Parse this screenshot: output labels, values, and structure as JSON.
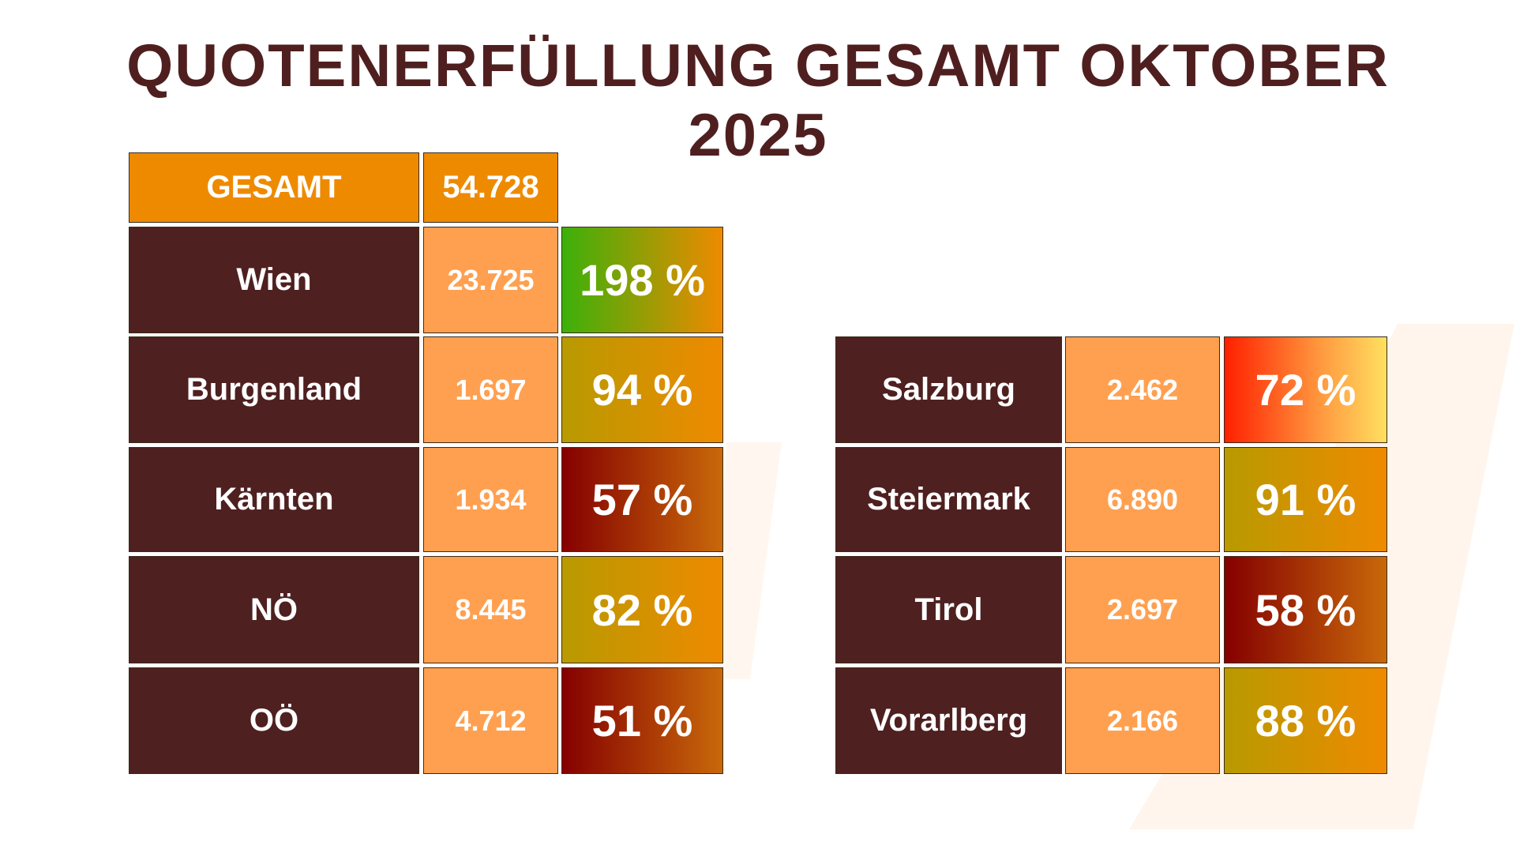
{
  "title": {
    "line1": "QUOTENERFÜLLUNG GESAMT OKTOBER",
    "line2": "2025"
  },
  "total": {
    "label": "GESAMT",
    "value": "54.728"
  },
  "left": [
    {
      "name": "Wien",
      "value": "23.725",
      "percent": "198 %",
      "color": "green"
    },
    {
      "name": "Burgenland",
      "value": "1.697",
      "percent": "94 %",
      "color": "olive"
    },
    {
      "name": "Kärnten",
      "value": "1.934",
      "percent": "57 %",
      "color": "red"
    },
    {
      "name": "NÖ",
      "value": "8.445",
      "percent": "82 %",
      "color": "olive"
    },
    {
      "name": "OÖ",
      "value": "4.712",
      "percent": "51 %",
      "color": "red"
    }
  ],
  "right": [
    {
      "name": "Salzburg",
      "value": "2.462",
      "percent": "72 %",
      "color": "hot"
    },
    {
      "name": "Steiermark",
      "value": "6.890",
      "percent": "91 %",
      "color": "olive"
    },
    {
      "name": "Tirol",
      "value": "2.697",
      "percent": "58 %",
      "color": "red"
    },
    {
      "name": "Vorarlberg",
      "value": "2.166",
      "percent": "88 %",
      "color": "olive"
    }
  ],
  "colors": {
    "title": "#4f1f1f",
    "name_bg": "#4f2020",
    "value_bg": "#ffa050",
    "total_bg": "#ee8a00"
  }
}
